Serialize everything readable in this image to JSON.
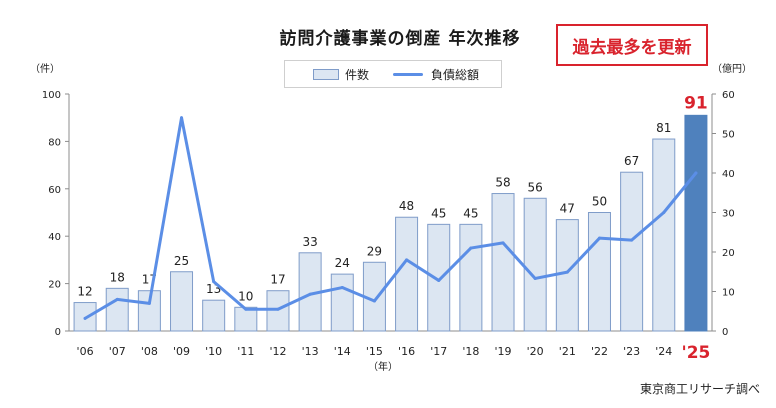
{
  "chart_data": {
    "type": "bar",
    "title": "訪問介護事業の倒産 年次推移",
    "badge": "過去最多を更新",
    "categories": [
      "'06",
      "'07",
      "'08",
      "'09",
      "'10",
      "'11",
      "'12",
      "'13",
      "'14",
      "'15",
      "'16",
      "'17",
      "'18",
      "'19",
      "'20",
      "'21",
      "'22",
      "'23",
      "'24",
      "'25"
    ],
    "series": [
      {
        "name": "件数",
        "type": "bar",
        "axis": "left",
        "values": [
          12,
          18,
          17,
          25,
          13,
          10,
          17,
          33,
          24,
          29,
          48,
          45,
          45,
          58,
          56,
          47,
          50,
          67,
          81,
          91
        ],
        "color": "#dce6f2",
        "border": "#7f9cc9",
        "highlight_color": "#4f81bd",
        "highlight_index": 19
      },
      {
        "name": "負債総額",
        "type": "line",
        "axis": "right",
        "values": [
          3.2,
          8.0,
          7.0,
          54.0,
          12.5,
          5.5,
          5.5,
          9.3,
          11.0,
          7.6,
          18.0,
          12.8,
          21.0,
          22.3,
          13.3,
          14.9,
          23.5,
          23.0,
          30.0,
          40.0
        ],
        "color": "#5b8ee6"
      }
    ],
    "y_left": {
      "unit": "（件）",
      "range": [
        0,
        100
      ],
      "ticks": [
        0,
        20,
        40,
        60,
        80,
        100
      ]
    },
    "y_right": {
      "unit": "（億円）",
      "range": [
        0,
        60
      ],
      "ticks": [
        0,
        10,
        20,
        30,
        40,
        50,
        60
      ]
    },
    "x_unit": "（年）",
    "grid": false,
    "legend": "top-center",
    "source": "東京商工リサーチ調べ"
  }
}
